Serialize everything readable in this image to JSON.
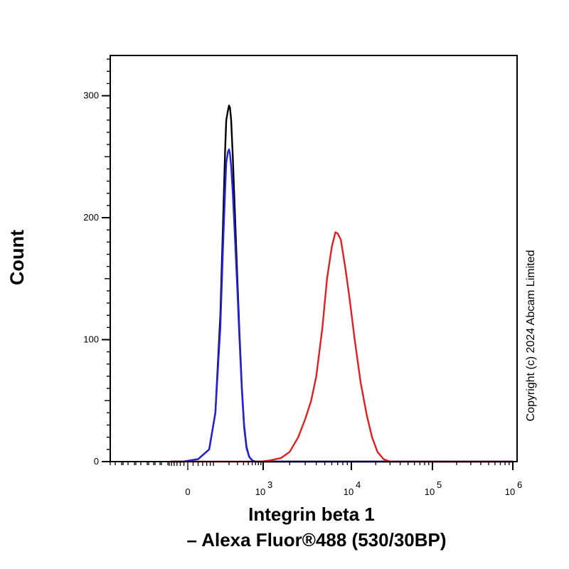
{
  "chart_data": {
    "type": "line",
    "xlabel_line1": "Integrin beta 1",
    "xlabel_line2": "– Alexa Fluor®488 (530/30BP)",
    "ylabel": "Count",
    "copyright": "Copyright (c) 2024 Abcam Limited",
    "x_scale": "biexponential",
    "x_ticks": [
      {
        "value": 0,
        "base": "0",
        "exp": ""
      },
      {
        "value": 1000,
        "base": "10",
        "exp": "3"
      },
      {
        "value": 10000,
        "base": "10",
        "exp": "4"
      },
      {
        "value": 100000,
        "base": "10",
        "exp": "5"
      },
      {
        "value": 1000000,
        "base": "10",
        "exp": "6"
      }
    ],
    "y_ticks": [
      0,
      100,
      200,
      300
    ],
    "ylim": [
      0,
      333
    ],
    "series": [
      {
        "name": "Black",
        "color": "#000000",
        "points": [
          [
            -80,
            0
          ],
          [
            -20,
            0
          ],
          [
            30,
            2
          ],
          [
            70,
            10
          ],
          [
            100,
            40
          ],
          [
            130,
            120
          ],
          [
            150,
            200
          ],
          [
            165,
            255
          ],
          [
            175,
            280
          ],
          [
            190,
            288
          ],
          [
            200,
            292
          ],
          [
            210,
            290
          ],
          [
            222,
            280
          ],
          [
            240,
            250
          ],
          [
            265,
            205
          ],
          [
            295,
            155
          ],
          [
            330,
            105
          ],
          [
            370,
            60
          ],
          [
            410,
            30
          ],
          [
            460,
            12
          ],
          [
            520,
            4
          ],
          [
            600,
            1
          ],
          [
            700,
            0
          ],
          [
            1000000,
            0
          ]
        ]
      },
      {
        "name": "Blue",
        "color": "#2222dd",
        "points": [
          [
            -80,
            0
          ],
          [
            -20,
            0
          ],
          [
            30,
            2
          ],
          [
            70,
            10
          ],
          [
            100,
            40
          ],
          [
            130,
            110
          ],
          [
            150,
            180
          ],
          [
            165,
            222
          ],
          [
            175,
            245
          ],
          [
            190,
            254
          ],
          [
            200,
            256
          ],
          [
            210,
            252
          ],
          [
            222,
            242
          ],
          [
            240,
            220
          ],
          [
            265,
            185
          ],
          [
            295,
            145
          ],
          [
            330,
            100
          ],
          [
            370,
            58
          ],
          [
            410,
            28
          ],
          [
            460,
            11
          ],
          [
            520,
            4
          ],
          [
            600,
            1
          ],
          [
            700,
            0
          ],
          [
            1000000,
            0
          ]
        ]
      },
      {
        "name": "Red",
        "color": "#e02020",
        "points": [
          [
            -80,
            0
          ],
          [
            900,
            0
          ],
          [
            1200,
            1
          ],
          [
            1600,
            3
          ],
          [
            2000,
            8
          ],
          [
            2500,
            20
          ],
          [
            3000,
            35
          ],
          [
            3500,
            50
          ],
          [
            4000,
            70
          ],
          [
            4700,
            110
          ],
          [
            5300,
            150
          ],
          [
            6000,
            176
          ],
          [
            6600,
            188
          ],
          [
            7000,
            187
          ],
          [
            7600,
            182
          ],
          [
            8500,
            160
          ],
          [
            9500,
            135
          ],
          [
            11000,
            100
          ],
          [
            13000,
            65
          ],
          [
            15500,
            38
          ],
          [
            18000,
            20
          ],
          [
            21000,
            8
          ],
          [
            25000,
            2
          ],
          [
            30000,
            0
          ],
          [
            1000000,
            0
          ]
        ]
      }
    ]
  }
}
